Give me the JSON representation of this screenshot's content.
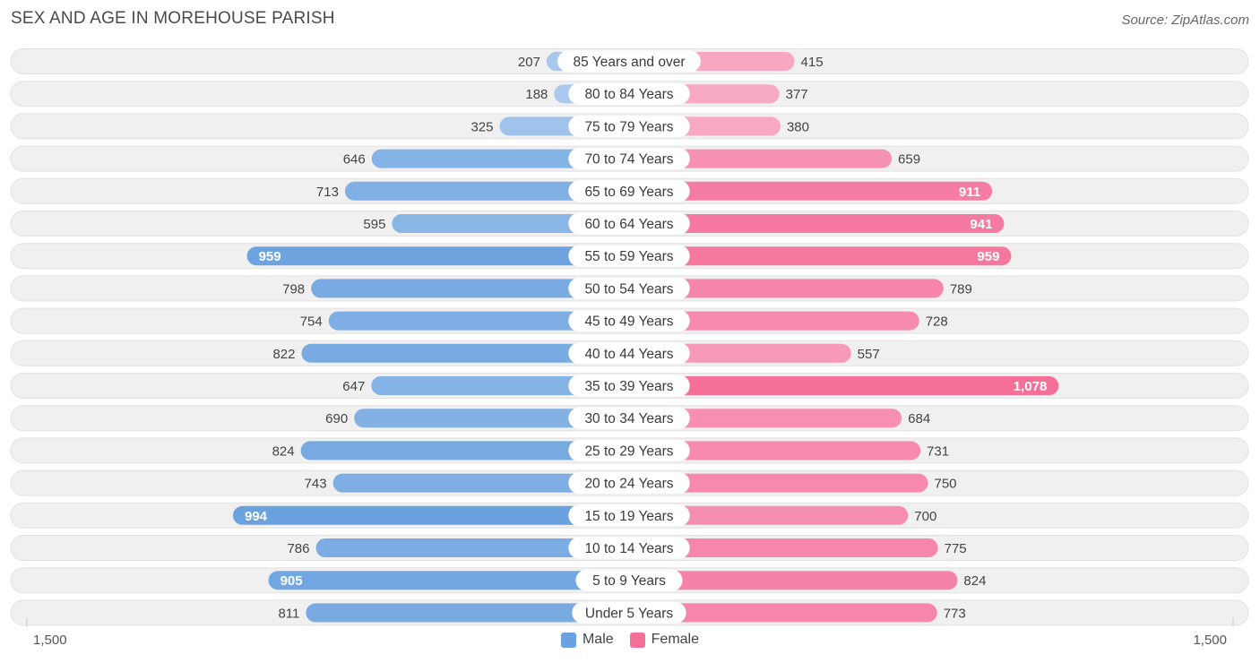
{
  "header": {
    "title": "SEX AND AGE IN MOREHOUSE PARISH",
    "source": "Source: ZipAtlas.com"
  },
  "colors": {
    "male_strong": "#6aa2df",
    "male_light": "#aecbee",
    "female_strong": "#f47099",
    "female_light": "#f8abc5",
    "row_bg": "#f0f0f0"
  },
  "chart_data": {
    "type": "bar",
    "orientation": "horizontal-diverging",
    "title": "SEX AND AGE IN MOREHOUSE PARISH",
    "xlim": [
      0,
      1500
    ],
    "axis_left_label": "1,500",
    "axis_right_label": "1,500",
    "categories": [
      "85 Years and over",
      "80 to 84 Years",
      "75 to 79 Years",
      "70 to 74 Years",
      "65 to 69 Years",
      "60 to 64 Years",
      "55 to 59 Years",
      "50 to 54 Years",
      "45 to 49 Years",
      "40 to 44 Years",
      "35 to 39 Years",
      "30 to 34 Years",
      "25 to 29 Years",
      "20 to 24 Years",
      "15 to 19 Years",
      "10 to 14 Years",
      "5 to 9 Years",
      "Under 5 Years"
    ],
    "series": [
      {
        "name": "Male",
        "values": [
          207,
          188,
          325,
          646,
          713,
          595,
          959,
          798,
          754,
          822,
          647,
          690,
          824,
          743,
          994,
          786,
          905,
          811
        ],
        "labels": [
          "207",
          "188",
          "325",
          "646",
          "713",
          "595",
          "959",
          "798",
          "754",
          "822",
          "647",
          "690",
          "824",
          "743",
          "994",
          "786",
          "905",
          "811"
        ]
      },
      {
        "name": "Female",
        "values": [
          415,
          377,
          380,
          659,
          911,
          941,
          959,
          789,
          728,
          557,
          1078,
          684,
          731,
          750,
          700,
          775,
          824,
          773
        ],
        "labels": [
          "415",
          "377",
          "380",
          "659",
          "911",
          "941",
          "959",
          "789",
          "728",
          "557",
          "1,078",
          "684",
          "731",
          "750",
          "700",
          "775",
          "824",
          "773"
        ]
      }
    ],
    "legend": {
      "placement": "bottom-center",
      "male": "Male",
      "female": "Female"
    }
  }
}
